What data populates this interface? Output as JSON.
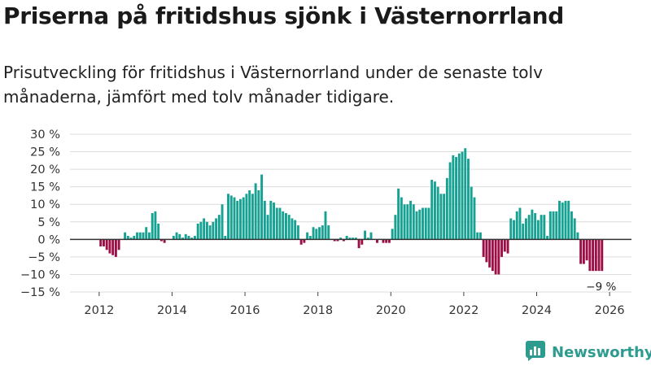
{
  "colors": {
    "positive": "#16a192",
    "negative": "#9b0e46",
    "grid": "#dcdcdc",
    "zero_line": "#333333",
    "brand": "#2e9b8f"
  },
  "logo": {
    "name": "Newsworthy",
    "icon": "newsworthy-chart-icon"
  },
  "chart_data": {
    "type": "bar",
    "title": "Priserna på fritidshus sjönk i Västernorrland",
    "subtitle": "Prisutveckling för fritidshus i Västernorrland under de senaste tolv månaderna, jämfört med tolv månader tidigare.",
    "ylabel": "",
    "xlabel": "",
    "ylim": [
      -15,
      30
    ],
    "xlim": [
      2011.2,
      2026.6
    ],
    "yticks": [
      30,
      25,
      20,
      15,
      10,
      5,
      0,
      -5,
      -10,
      -15
    ],
    "ytick_labels": [
      "30 %",
      "25 %",
      "20 %",
      "15 %",
      "10 %",
      "5 %",
      "0 %",
      "−5 %",
      "−10 %",
      "−15 %"
    ],
    "xticks": [
      2012,
      2014,
      2016,
      2018,
      2020,
      2022,
      2024,
      2026
    ],
    "xtick_labels": [
      "2012",
      "2014",
      "2016",
      "2018",
      "2020",
      "2022",
      "2024",
      "2026"
    ],
    "grid": true,
    "start_year": 2012,
    "start_month": 1,
    "values": [
      -2,
      -2,
      -3,
      -4,
      -4.5,
      -5,
      -3,
      0,
      2,
      1,
      0.5,
      1,
      2,
      2,
      2,
      3.5,
      2,
      7.5,
      8,
      4.5,
      -0.5,
      -1,
      0,
      0,
      1,
      2,
      1.5,
      0.5,
      1.5,
      1,
      0.5,
      1,
      4.5,
      5,
      6,
      5,
      4,
      5,
      6,
      7,
      10,
      1,
      13,
      12.5,
      12,
      11,
      11.5,
      12,
      13,
      14,
      13,
      16,
      14,
      18.5,
      11,
      7,
      11,
      10.5,
      9,
      9,
      8,
      7.5,
      7,
      6,
      5.5,
      4,
      -1.5,
      -1,
      2,
      1,
      3.5,
      3,
      3.5,
      4,
      8,
      4,
      0,
      -0.5,
      -0.5,
      0.5,
      -0.5,
      1,
      0.5,
      0.5,
      0.5,
      -2.5,
      -1.5,
      2.5,
      0.5,
      2,
      0,
      -1,
      0,
      -1,
      -1,
      -1,
      3,
      7,
      14.5,
      12,
      10,
      10,
      11,
      10,
      8,
      8.5,
      9,
      9,
      9,
      17,
      16.5,
      15,
      13,
      13,
      17.5,
      22,
      24,
      23.5,
      24.5,
      25,
      26,
      23,
      15,
      12,
      2,
      2,
      -5,
      -6.5,
      -8,
      -9,
      -10,
      -10,
      -5,
      -3.5,
      -4,
      6,
      5.5,
      8,
      9,
      4.5,
      6,
      7,
      8.5,
      7.5,
      5.5,
      7,
      7,
      1,
      8,
      8,
      8,
      11,
      10.5,
      11,
      11,
      8,
      6,
      2,
      -7,
      -7,
      -6,
      -9,
      -9,
      -9,
      -9,
      -9
    ],
    "annotations": [
      {
        "text": "−9 %",
        "at": "last bar",
        "value": -9
      }
    ]
  }
}
